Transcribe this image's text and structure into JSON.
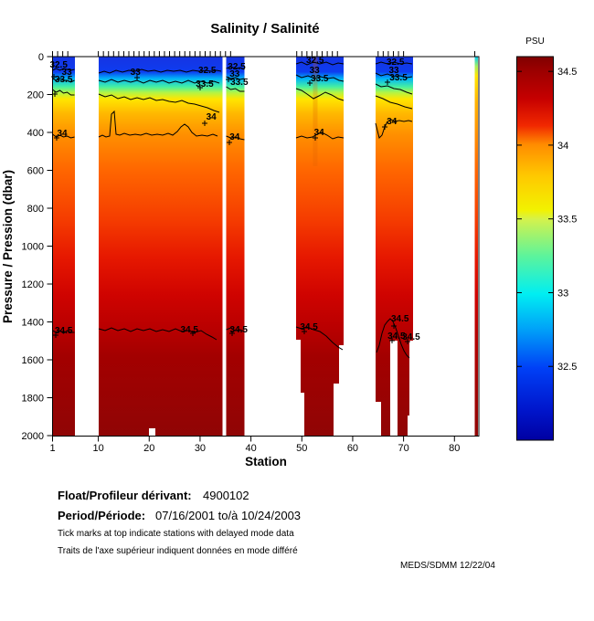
{
  "chart_data": {
    "type": "heatmap",
    "title": "Salinity / Salinité",
    "xlabel": "Station",
    "ylabel": "Pressure / Pression (dbar)",
    "colorbar_title": "PSU",
    "x_ticks": [
      1,
      10,
      20,
      30,
      40,
      50,
      60,
      70,
      80
    ],
    "y_ticks": [
      0,
      200,
      400,
      600,
      800,
      1000,
      1200,
      1400,
      1600,
      1800,
      2000
    ],
    "x_range": [
      1,
      84.8
    ],
    "y_range": [
      0,
      2000
    ],
    "grid": false,
    "colorbar_ticks": [
      34.5,
      34,
      33.5,
      33,
      32.5
    ],
    "colorbar_range": [
      32.0,
      34.6
    ],
    "contour_levels": [
      32.5,
      33,
      33.5,
      34,
      34.5
    ],
    "station_segments_with_data": [
      [
        1,
        5.4
      ],
      [
        10,
        34.3
      ],
      [
        35.1,
        38.7
      ],
      [
        48.9,
        58.2
      ],
      [
        64.5,
        71.9
      ],
      [
        84,
        84.6
      ]
    ],
    "delayed_mode_station_ranges": [
      [
        1,
        4
      ],
      [
        10,
        36
      ],
      [
        49,
        57
      ],
      [
        65,
        70
      ],
      [
        84,
        84
      ]
    ],
    "profile_structure": [
      {
        "pressure_dbar": 0,
        "salinity_psu": 32.2
      },
      {
        "pressure_dbar": 80,
        "salinity_psu": 32.5
      },
      {
        "pressure_dbar": 120,
        "salinity_psu": 33
      },
      {
        "pressure_dbar": 180,
        "salinity_psu": 33.5
      },
      {
        "pressure_dbar": 420,
        "salinity_psu": 34
      },
      {
        "pressure_dbar": 1450,
        "salinity_psu": 34.5
      },
      {
        "pressure_dbar": 2000,
        "salinity_psu": 34.6
      }
    ],
    "contour_labels": [
      {
        "level": "32.5",
        "station": 2.2,
        "pressure": 43
      },
      {
        "level": "33",
        "station": 3.8,
        "pressure": 82
      },
      {
        "level": "33.5",
        "station": 3.2,
        "pressure": 120
      },
      {
        "level": "34",
        "station": 2.9,
        "pressure": 405
      },
      {
        "level": "34.5",
        "station": 3.2,
        "pressure": 1446
      },
      {
        "level": "33",
        "station": 17.3,
        "pressure": 82
      },
      {
        "level": "32.5",
        "station": 31.4,
        "pressure": 72
      },
      {
        "level": "33.5",
        "station": 30.9,
        "pressure": 145
      },
      {
        "level": "34",
        "station": 32.2,
        "pressure": 318
      },
      {
        "level": "34.5",
        "station": 27.9,
        "pressure": 1441
      },
      {
        "level": "32.5",
        "station": 37.2,
        "pressure": 53
      },
      {
        "level": "33",
        "station": 36.8,
        "pressure": 92
      },
      {
        "level": "33.5",
        "station": 37.7,
        "pressure": 135
      },
      {
        "level": "34",
        "station": 36.8,
        "pressure": 424
      },
      {
        "level": "34.5",
        "station": 37.6,
        "pressure": 1441
      },
      {
        "level": "32.5",
        "station": 52.6,
        "pressure": 19
      },
      {
        "level": "33",
        "station": 52.5,
        "pressure": 72
      },
      {
        "level": "33.5",
        "station": 53.5,
        "pressure": 116
      },
      {
        "level": "34",
        "station": 53.4,
        "pressure": 400
      },
      {
        "level": "34.5",
        "station": 51.4,
        "pressure": 1427
      },
      {
        "level": "32.5",
        "station": 68.4,
        "pressure": 29
      },
      {
        "level": "33",
        "station": 68.1,
        "pressure": 72
      },
      {
        "level": "33.5",
        "station": 69.0,
        "pressure": 111
      },
      {
        "level": "34",
        "station": 67.7,
        "pressure": 342
      },
      {
        "level": "34.5",
        "station": 69.3,
        "pressure": 1383
      },
      {
        "level": "34.5",
        "station": 68.6,
        "pressure": 1475
      },
      {
        "level": "34.5",
        "station": 71.5,
        "pressure": 1480
      }
    ]
  },
  "footer": {
    "float_label": "Float/Profileur dérivant:",
    "float_value": "4900102",
    "period_label": "Period/Période:",
    "period_value": "07/16/2001  to/à  10/24/2003",
    "note_en": "Tick marks at top indicate stations with delayed mode data",
    "note_fr": "Traits de l'axe supérieur indiquent données en mode différé",
    "credit": "MEDS/SDMM  12/22/04"
  }
}
